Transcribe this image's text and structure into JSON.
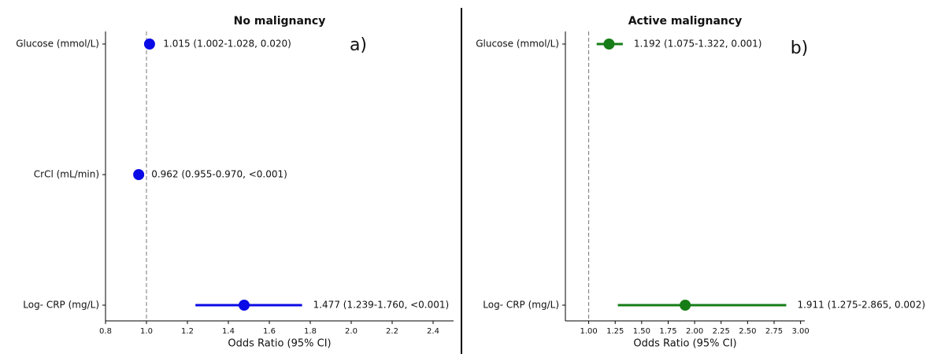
{
  "chart_data": [
    {
      "type": "forest",
      "title": "No malignancy",
      "panel_label": "a)",
      "xlabel": "Odds Ratio (95% CI)",
      "categories": [
        "Glucose (mmol/L)",
        "CrCl (mL/min)",
        "Log- CRP (mg/L)"
      ],
      "series": [
        {
          "color": "#0a0ae6",
          "values": [
            1.015,
            0.962,
            1.477
          ],
          "lower": [
            1.002,
            0.955,
            1.239
          ],
          "upper": [
            1.028,
            0.97,
            1.76
          ],
          "value_labels": [
            "1.015 (1.002-1.028, 0.020)",
            "0.962 (0.955-0.970, <0.001)",
            "1.477 (1.239-1.760, <0.001)"
          ]
        }
      ],
      "reference_line": 1.0,
      "xlim": [
        0.8,
        2.5
      ],
      "xticks": [
        0.8,
        {
          "value": 1.0,
          "label": "1.0"
        },
        1.2,
        1.4,
        1.6,
        1.8,
        {
          "value": 2.0,
          "label": "2.0"
        },
        2.2,
        2.4
      ]
    },
    {
      "type": "forest",
      "title": "Active malignancy",
      "panel_label": "b)",
      "xlabel": "Odds Ratio (95% CI)",
      "categories": [
        "Glucose (mmol/L)",
        "Log- CRP (mg/L)"
      ],
      "series": [
        {
          "color": "#167d16",
          "values": [
            1.192,
            1.911
          ],
          "lower": [
            1.075,
            1.275
          ],
          "upper": [
            1.322,
            2.865
          ],
          "value_labels": [
            "1.192 (1.075-1.322, 0.001)",
            "1.911 (1.275-2.865, 0.002)"
          ]
        }
      ],
      "reference_line": 1.0,
      "xlim": [
        0.78,
        3.04
      ],
      "xticks": [
        {
          "value": 1.0,
          "label": "1.00"
        },
        {
          "value": 1.25,
          "label": "1.25"
        },
        {
          "value": 1.5,
          "label": "1.50"
        },
        {
          "value": 1.75,
          "label": "1.75"
        },
        {
          "value": 2.0,
          "label": "2.00"
        },
        {
          "value": 2.25,
          "label": "2.25"
        },
        {
          "value": 2.5,
          "label": "2.50"
        },
        {
          "value": 2.75,
          "label": "2.75"
        },
        {
          "value": 3.0,
          "label": "3.00"
        }
      ]
    }
  ]
}
